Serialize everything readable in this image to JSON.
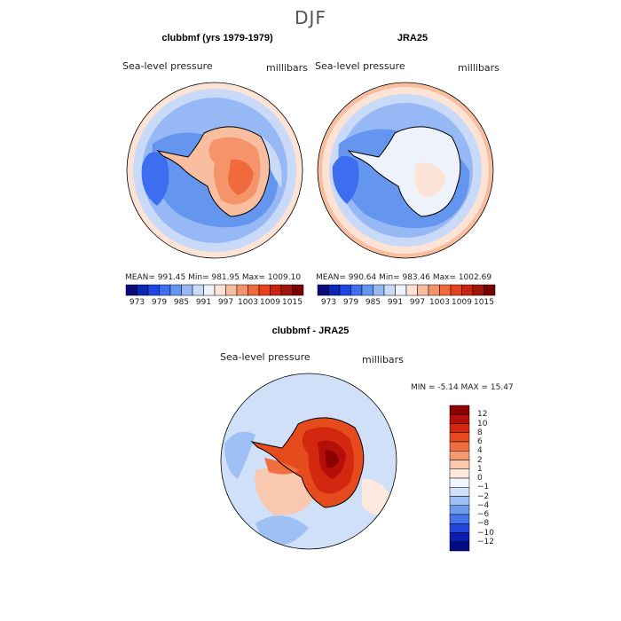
{
  "figure": {
    "title": "DJF",
    "panels": [
      {
        "title": "clubbmf (yrs 1979-1979)",
        "variable": "Sea-level pressure",
        "units": "millibars",
        "stats": "MEAN= 991.45   Min= 981.95   Max= 1009.10"
      },
      {
        "title": "JRA25",
        "variable": "Sea-level pressure",
        "units": "millibars",
        "stats": "MEAN= 990.64   Min= 983.46   Max= 1002.69"
      }
    ],
    "diff": {
      "title": "clubbmf - JRA25",
      "variable": "Sea-level pressure",
      "units": "millibars",
      "stats": "MIN =   -5.14  MAX =   15.47"
    }
  },
  "colorbar_horizontal": {
    "tick_labels": [
      "973",
      "979",
      "985",
      "991",
      "997",
      "1003",
      "1009",
      "1015"
    ],
    "colors": [
      "#0a0a7a",
      "#0a28b4",
      "#1e46e6",
      "#3c6eef",
      "#6496f0",
      "#96b9f5",
      "#c8daf8",
      "#eef2fb",
      "#fde3d6",
      "#f9bea0",
      "#f5946a",
      "#f06a3c",
      "#e6411e",
      "#c8230f",
      "#a0140a",
      "#780000"
    ]
  },
  "colorbar_vertical": {
    "tick_labels": [
      "12",
      "10",
      "8",
      "6",
      "4",
      "2",
      "1",
      "0",
      "−1",
      "−2",
      "−4",
      "−6",
      "−8",
      "−10",
      "−12"
    ],
    "colors": [
      "#8b0000",
      "#b40f0a",
      "#d2280f",
      "#e64b1e",
      "#f06e40",
      "#f59a70",
      "#fac8ae",
      "#fde9de",
      "#f3f5fc",
      "#cfe0f8",
      "#9fc0f4",
      "#6e9af0",
      "#4473ea",
      "#2046dc",
      "#0a1eb4",
      "#000a82"
    ]
  },
  "colors": {
    "ocean_blue": "#6e9af0",
    "light_blue": "#a9c7f3",
    "pale_blue": "#dfe8f8",
    "red": "#e85a2a",
    "dark_red": "#a0140a",
    "peach": "#f7b595"
  }
}
